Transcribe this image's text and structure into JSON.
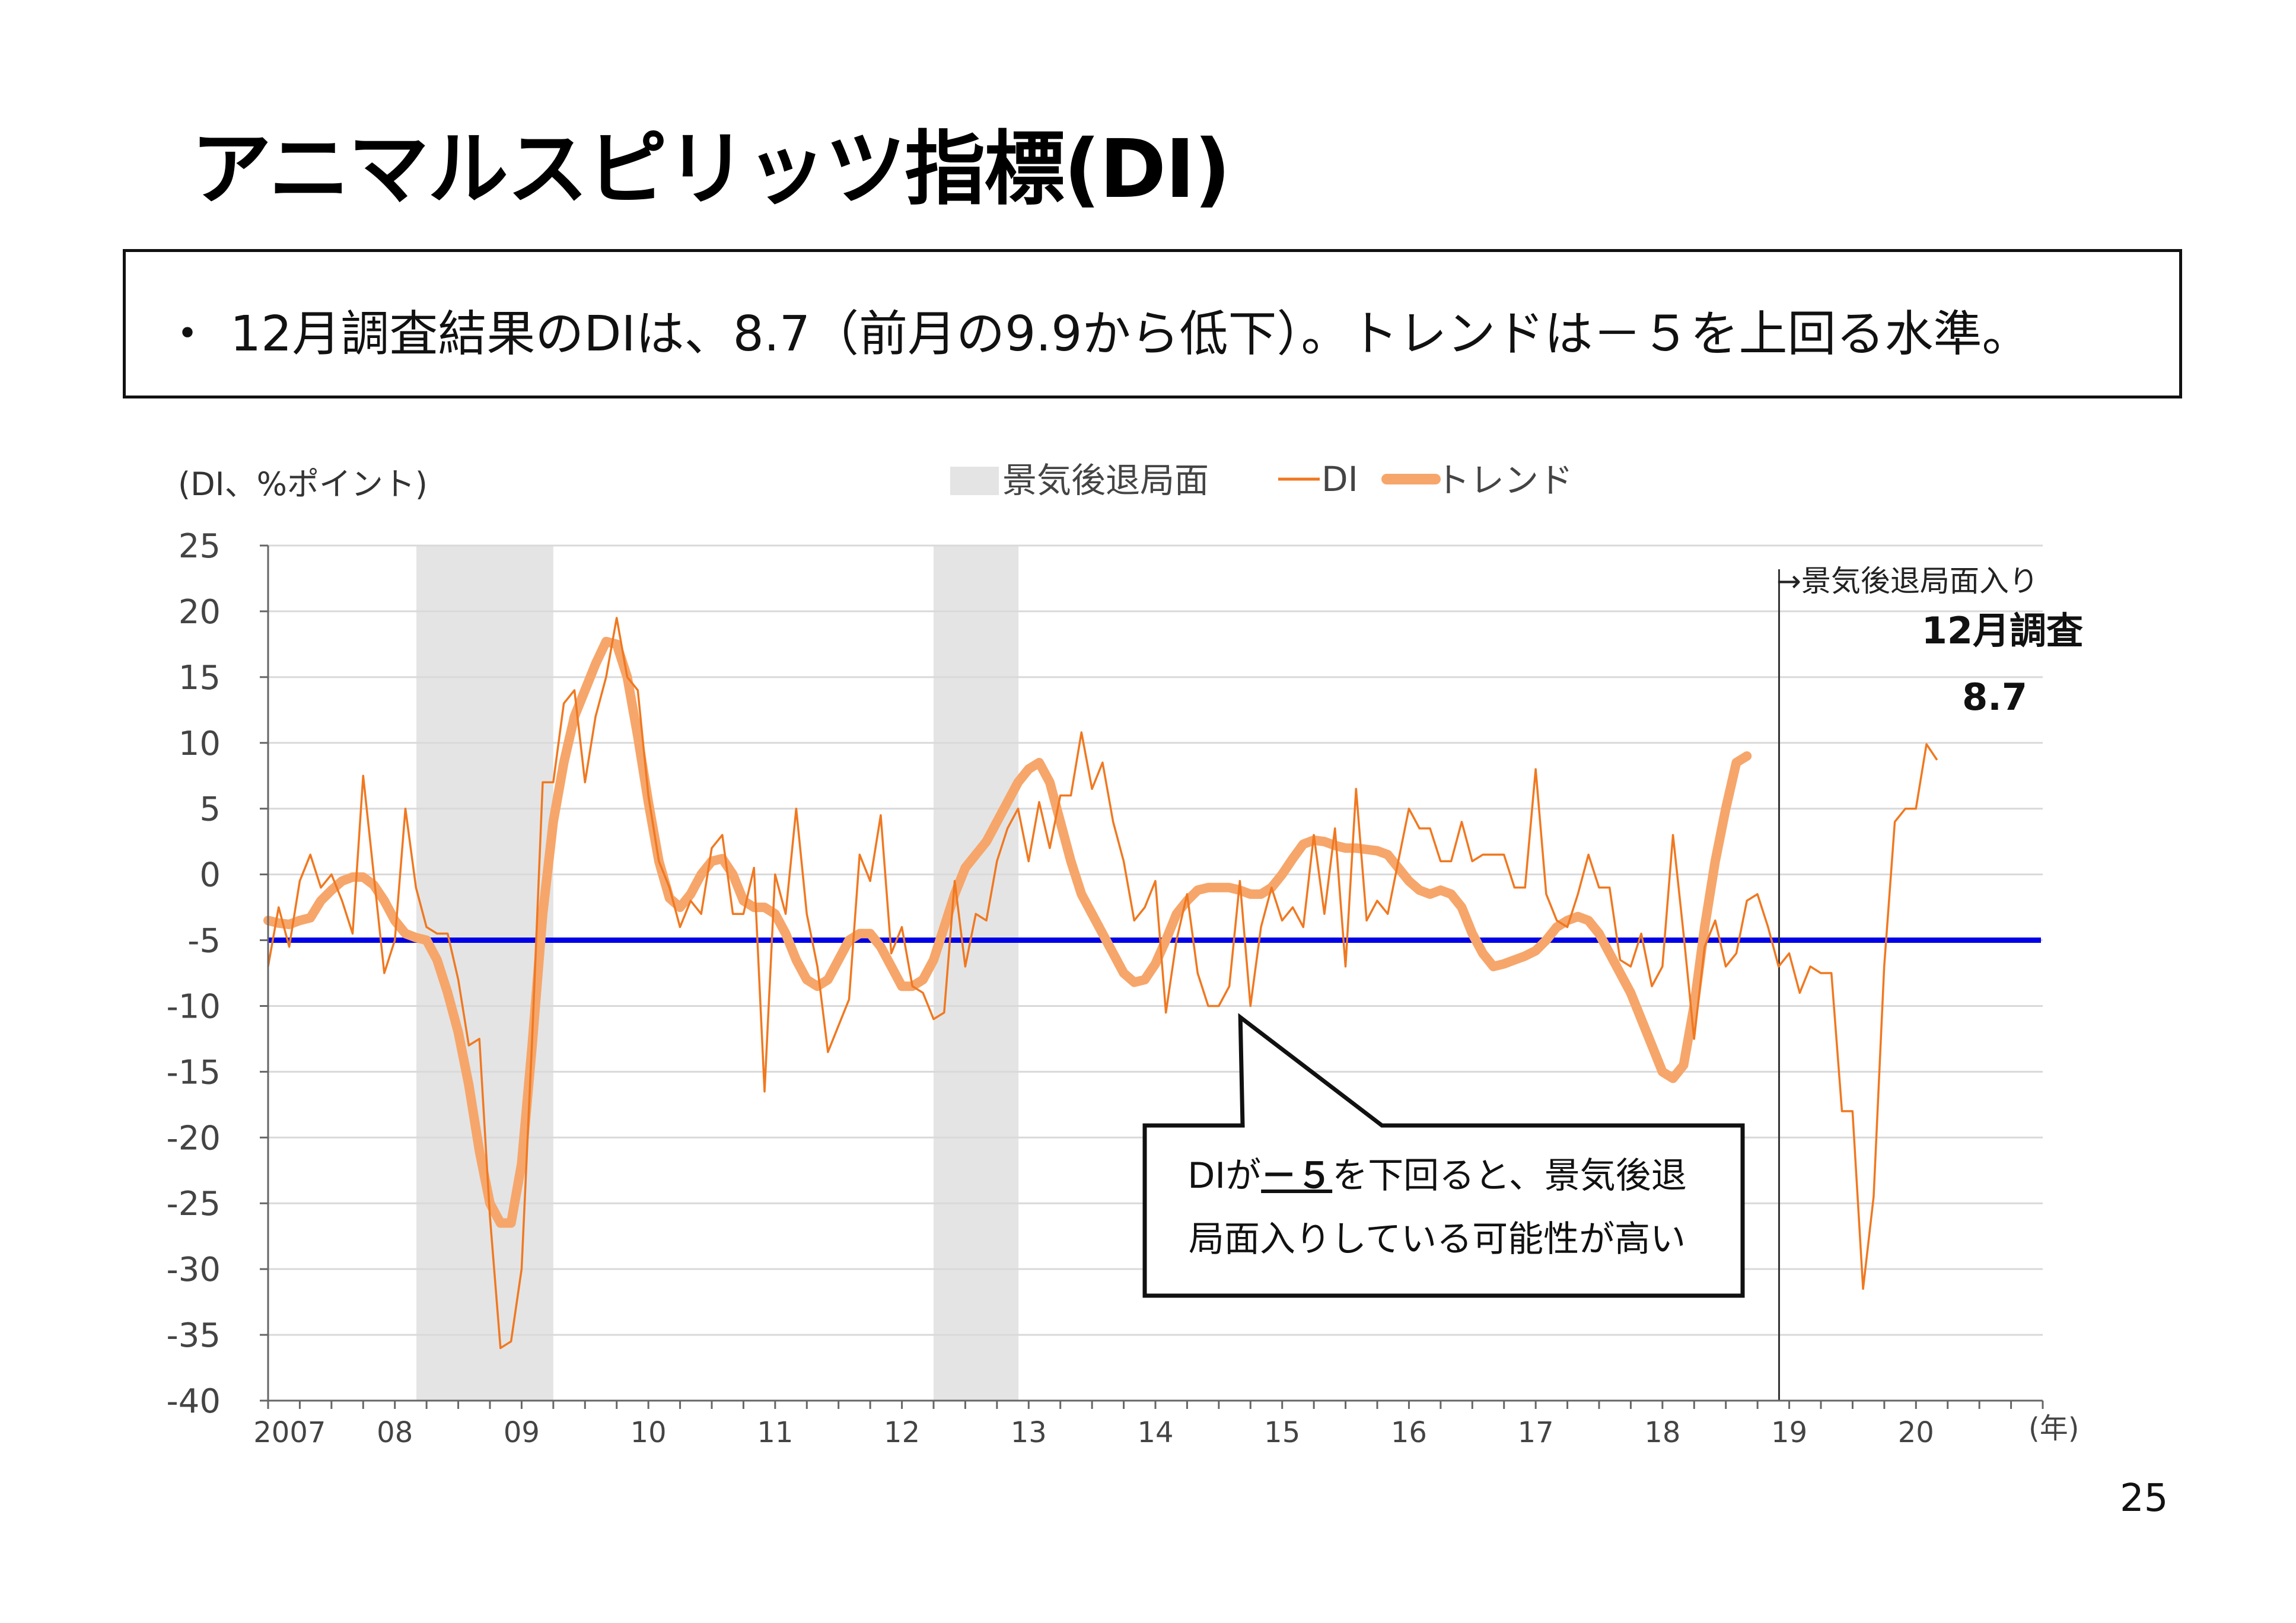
{
  "title": "アニマルスピリッツ指標(DI)",
  "summary": {
    "bullet": "・",
    "text": "12月調査結果のDIは、8.7（前月の9.9から低下）。トレンドは－５を上回る水準。"
  },
  "page_number": "25",
  "colors": {
    "di": "#f07820",
    "trend": "#f6a66a",
    "threshold": "#0000e6",
    "recession": "#e4e4e4",
    "grid": "#d9d9d9"
  },
  "chart_data": {
    "type": "line",
    "title": "",
    "ylabel": "(DI、%ポイント)",
    "xlabel": "(年)",
    "ylim": [
      -40,
      25
    ],
    "yticks": [
      25,
      20,
      15,
      10,
      5,
      0,
      -5,
      -10,
      -15,
      -20,
      -25,
      -30,
      -35,
      -40
    ],
    "xlim": [
      2007.0,
      2021.0
    ],
    "x_tick_labels": [
      {
        "x": 2007.17,
        "label": "2007"
      },
      {
        "x": 2008.0,
        "label": "08"
      },
      {
        "x": 2009.0,
        "label": "09"
      },
      {
        "x": 2010.0,
        "label": "10"
      },
      {
        "x": 2011.0,
        "label": "11"
      },
      {
        "x": 2012.0,
        "label": "12"
      },
      {
        "x": 2013.0,
        "label": "13"
      },
      {
        "x": 2014.0,
        "label": "14"
      },
      {
        "x": 2015.0,
        "label": "15"
      },
      {
        "x": 2016.0,
        "label": "16"
      },
      {
        "x": 2017.0,
        "label": "17"
      },
      {
        "x": 2018.0,
        "label": "18"
      },
      {
        "x": 2019.0,
        "label": "19"
      },
      {
        "x": 2020.0,
        "label": "20"
      }
    ],
    "legend": [
      {
        "key": "recession",
        "label": "景気後退局面"
      },
      {
        "key": "di",
        "label": "DI"
      },
      {
        "key": "trend",
        "label": "トレンド"
      }
    ],
    "recessions": [
      [
        2008.17,
        2009.25
      ],
      [
        2012.25,
        2012.92
      ]
    ],
    "threshold": -5,
    "recession_entry_line": 2018.92,
    "annotations": {
      "recession_entry": "→景気後退局面入り",
      "latest_label": "12月調査",
      "latest_value": "8.7"
    },
    "callout": {
      "line1_before": "DIが",
      "line1_emph": "－５",
      "line1_after": "を下回ると、景気後退",
      "line2": "局面入りしている可能性が高い",
      "pointer_x": 2014.67,
      "pointer_y": -10.5
    },
    "series": [
      {
        "name": "DI",
        "x_start": 2007.0,
        "x_step": 0.08333,
        "values": [
          -7,
          -2.5,
          -5.5,
          -0.5,
          1.5,
          -1,
          0,
          -2,
          -4.5,
          7.5,
          0,
          -7.5,
          -5,
          5,
          -1,
          -4,
          -4.5,
          -4.5,
          -8,
          -13,
          -12.5,
          -26,
          -36,
          -35.5,
          -30,
          -12.5,
          7,
          7,
          13,
          14,
          7,
          12,
          15,
          19.5,
          15,
          14,
          6,
          1,
          -1,
          -4,
          -2,
          -3,
          2,
          3,
          -3,
          -3,
          0.5,
          -16.5,
          0,
          -3,
          5,
          -3,
          -7,
          -13.5,
          -11.5,
          -9.5,
          1.5,
          -0.5,
          4.5,
          -6,
          -4,
          -8.5,
          -9,
          -11,
          -10.5,
          -0.5,
          -7,
          -3,
          -3.5,
          1,
          3.5,
          5,
          1,
          5.5,
          2,
          6,
          6,
          10.8,
          6.5,
          8.5,
          4,
          1,
          -3.5,
          -2.5,
          -0.5,
          -10.5,
          -5,
          -1.5,
          -7.5,
          -10,
          -10,
          -8.5,
          -0.5,
          -10,
          -4,
          -1,
          -3.5,
          -2.5,
          -4,
          3,
          -3,
          3.5,
          -7,
          6.5,
          -3.5,
          -2,
          -3,
          1,
          5,
          3.5,
          3.5,
          1,
          1,
          4,
          1,
          1.5,
          1.5,
          1.5,
          -1,
          -1,
          8,
          -1.5,
          -3.5,
          -4,
          -1.5,
          1.5,
          -1,
          -1,
          -6.5,
          -7,
          -4.5,
          -8.5,
          -7,
          3,
          -4.5,
          -12.5,
          -5.5,
          -3.5,
          -7,
          -6,
          -2,
          -1.5,
          -4,
          -7,
          -6,
          -9,
          -7,
          -7.5,
          -7.5,
          -18,
          -18,
          -31.5,
          -24.5,
          -7,
          4,
          5,
          5,
          9.9,
          8.7
        ]
      },
      {
        "name": "トレンド",
        "x_start": 2007.0,
        "x_step": 0.08333,
        "values": [
          -3.5,
          -3.7,
          -3.8,
          -3.5,
          -3.3,
          -2,
          -1.2,
          -0.5,
          -0.2,
          -0.2,
          -0.8,
          -2,
          -3.5,
          -4.5,
          -4.8,
          -5,
          -6.5,
          -9,
          -12,
          -16,
          -21,
          -25,
          -26.5,
          -26.5,
          -22,
          -13,
          -3,
          4,
          8.5,
          12,
          14,
          16,
          17.7,
          17.5,
          15,
          10.5,
          5.5,
          1,
          -1.8,
          -2.5,
          -1.5,
          0,
          1,
          1.2,
          0,
          -2,
          -2.5,
          -2.5,
          -3,
          -4.5,
          -6.5,
          -8,
          -8.5,
          -8,
          -6.5,
          -5,
          -4.5,
          -4.5,
          -5.5,
          -7,
          -8.5,
          -8.5,
          -8,
          -6.5,
          -4,
          -1.5,
          0.5,
          1.5,
          2.5,
          4,
          5.5,
          7,
          8,
          8.5,
          7,
          4,
          1,
          -1.5,
          -3,
          -4.5,
          -6,
          -7.5,
          -8.2,
          -8,
          -6.8,
          -5,
          -3,
          -2,
          -1.2,
          -1,
          -1,
          -1,
          -1.2,
          -1.5,
          -1.5,
          -1,
          0,
          1.2,
          2.3,
          2.6,
          2.5,
          2.2,
          2,
          2,
          1.9,
          1.8,
          1.5,
          0.5,
          -0.5,
          -1.2,
          -1.5,
          -1.2,
          -1.5,
          -2.5,
          -4.5,
          -6,
          -7,
          -6.8,
          -6.5,
          -6.2,
          -5.8,
          -5,
          -4,
          -3.5,
          -3.2,
          -3.5,
          -4.5,
          -6,
          -7.5,
          -9,
          -11,
          -13,
          -15,
          -15.5,
          -14.5,
          -10,
          -4,
          1,
          5,
          8.5,
          9
        ]
      }
    ]
  }
}
